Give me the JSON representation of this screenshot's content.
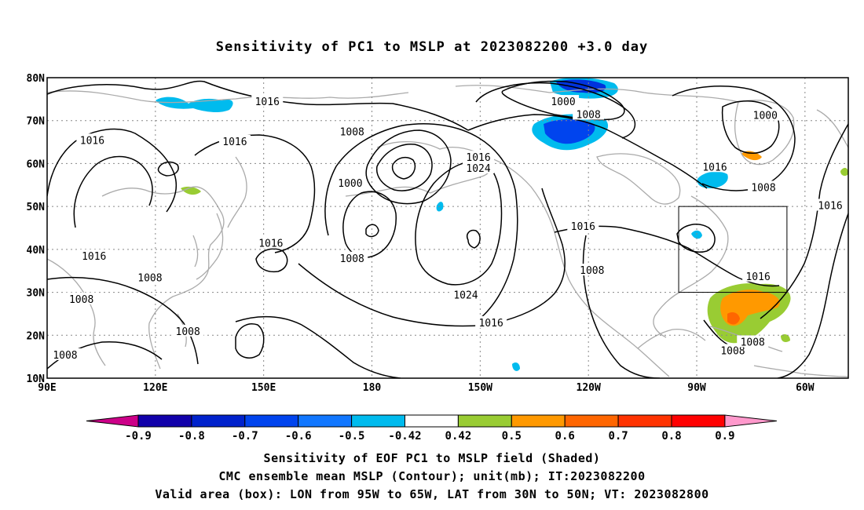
{
  "title": "Sensitivity of PC1 to MSLP at 2023082200 +3.0 day",
  "map": {
    "lat_labels": [
      "80N",
      "70N",
      "60N",
      "50N",
      "40N",
      "30N",
      "20N",
      "10N"
    ],
    "lat_values": [
      80,
      70,
      60,
      50,
      40,
      30,
      20,
      10
    ],
    "lon_labels": [
      "90E",
      "120E",
      "150E",
      "180",
      "150W",
      "120W",
      "90W",
      "60W"
    ],
    "lon_values": [
      90,
      120,
      150,
      180,
      210,
      240,
      270,
      300
    ],
    "lon_range": [
      90,
      312
    ],
    "lat_range": [
      10,
      80
    ],
    "valid_box": {
      "lon": [
        265,
        295
      ],
      "lat": [
        30,
        50
      ]
    },
    "colors": {
      "coast": "#aaaaaa",
      "contour": "#000000",
      "grid": "#888888"
    }
  },
  "contour_labels": [
    {
      "text": "1016",
      "lon": 151,
      "lat": 74.5
    },
    {
      "text": "1016",
      "lon": 102.5,
      "lat": 65.5
    },
    {
      "text": "1016",
      "lon": 142,
      "lat": 65.2
    },
    {
      "text": "1008",
      "lon": 174.5,
      "lat": 67.5
    },
    {
      "text": "1000",
      "lon": 174,
      "lat": 55.5
    },
    {
      "text": "1016",
      "lon": 209.5,
      "lat": 61.5
    },
    {
      "text": "1024",
      "lon": 209.5,
      "lat": 59
    },
    {
      "text": "1000",
      "lon": 233,
      "lat": 74.5
    },
    {
      "text": "1008",
      "lon": 240,
      "lat": 71.5
    },
    {
      "text": "1000",
      "lon": 289,
      "lat": 71.3
    },
    {
      "text": "1016",
      "lon": 275,
      "lat": 59.3
    },
    {
      "text": "1008",
      "lon": 288.5,
      "lat": 54.5
    },
    {
      "text": "1016",
      "lon": 307,
      "lat": 50.3
    },
    {
      "text": "1016",
      "lon": 152,
      "lat": 41.5
    },
    {
      "text": "1016",
      "lon": 238.5,
      "lat": 45.5
    },
    {
      "text": "1016",
      "lon": 103,
      "lat": 38.5
    },
    {
      "text": "1008",
      "lon": 118.5,
      "lat": 33.5
    },
    {
      "text": "1008",
      "lon": 174.5,
      "lat": 38
    },
    {
      "text": "1008",
      "lon": 241,
      "lat": 35.2
    },
    {
      "text": "1024",
      "lon": 206,
      "lat": 29.5
    },
    {
      "text": "1016",
      "lon": 213,
      "lat": 23
    },
    {
      "text": "1008",
      "lon": 99.5,
      "lat": 28.5
    },
    {
      "text": "1016",
      "lon": 287,
      "lat": 33.8
    },
    {
      "text": "1008",
      "lon": 129,
      "lat": 21
    },
    {
      "text": "1008",
      "lon": 280,
      "lat": 16.5
    },
    {
      "text": "1008",
      "lon": 285.5,
      "lat": 18.5
    },
    {
      "text": "1008",
      "lon": 95,
      "lat": 15.5
    }
  ],
  "colorbar": {
    "labels": [
      "-0.9",
      "-0.8",
      "-0.7",
      "-0.6",
      "-0.5",
      "-0.42",
      "0.42",
      "0.5",
      "0.6",
      "0.7",
      "0.8",
      "0.9"
    ],
    "colors": [
      "#1100aa",
      "#0022cc",
      "#0044ee",
      "#1177ff",
      "#00bbee",
      "#ffffff",
      "#99cc33",
      "#ff9900",
      "#ff6600",
      "#ff3300",
      "#ff0000"
    ],
    "low_cap": "#cc0088",
    "high_cap": "#ff99cc"
  },
  "captions": [
    "Sensitivity of EOF PC1 to MSLP field (Shaded)",
    "CMC ensemble mean MSLP (Contour); unit(mb); IT:2023082200",
    "Valid area (box): LON from 95W to 65W, LAT from 30N to 50N; VT: 2023082800"
  ]
}
